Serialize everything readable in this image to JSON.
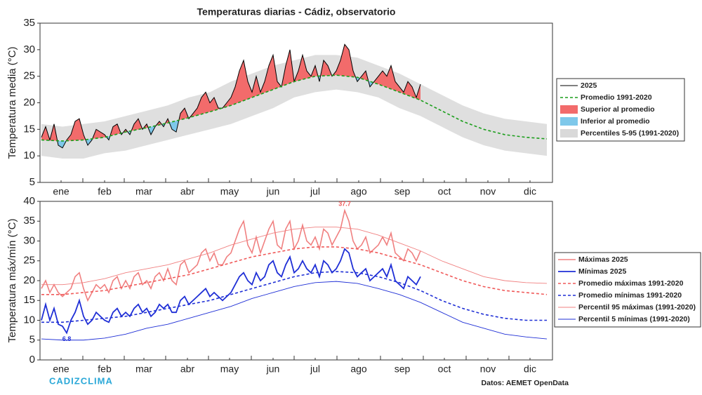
{
  "chart_data": [
    {
      "type": "line",
      "title": "Temperaturas diarias - Cádiz, observatorio",
      "ylabel": "Temperatura media (°C)",
      "xlim": [
        0,
        365
      ],
      "ylim": [
        5,
        35
      ],
      "yticks": [
        5,
        10,
        15,
        20,
        25,
        30,
        35
      ],
      "xticks": [
        {
          "value": 15,
          "label": "ene"
        },
        {
          "value": 46,
          "label": "feb"
        },
        {
          "value": 74,
          "label": "mar"
        },
        {
          "value": 105,
          "label": "abr"
        },
        {
          "value": 135,
          "label": "may"
        },
        {
          "value": 166,
          "label": "jun"
        },
        {
          "value": 196,
          "label": "jul"
        },
        {
          "value": 227,
          "label": "ago"
        },
        {
          "value": 258,
          "label": "sep"
        },
        {
          "value": 288,
          "label": "oct"
        },
        {
          "value": 319,
          "label": "nov"
        },
        {
          "value": 349,
          "label": "dic"
        }
      ],
      "band": {
        "name": "Percentiles 5-95 (1991-2020)",
        "color": "#d9d9d9",
        "x": [
          1,
          16,
          31,
          46,
          61,
          76,
          91,
          106,
          121,
          136,
          151,
          166,
          181,
          196,
          211,
          226,
          241,
          256,
          271,
          286,
          301,
          316,
          331,
          346,
          361
        ],
        "low": [
          10,
          9.5,
          9.5,
          10.5,
          11,
          12,
          13,
          14,
          15,
          16,
          17.5,
          19,
          21,
          22,
          22.5,
          22,
          21,
          19,
          17.5,
          15.5,
          13.5,
          12,
          11,
          10.5,
          10
        ],
        "high": [
          16,
          15.5,
          16,
          16.5,
          17.5,
          18.5,
          19.5,
          21,
          22,
          24,
          25.5,
          27,
          28,
          29,
          29,
          28.5,
          27,
          25.5,
          23.5,
          21.5,
          19.5,
          18,
          17,
          16.5,
          16
        ]
      },
      "fills": [
        {
          "name": "Superior al promedio",
          "color": "#f26b6b"
        },
        {
          "name": "Inferior al promedio",
          "color": "#7ec8ea"
        }
      ],
      "series": [
        {
          "name": "2025",
          "color": "#000000",
          "linewidth": 1,
          "x": [
            1,
            4,
            7,
            10,
            13,
            16,
            19,
            22,
            25,
            28,
            31,
            34,
            37,
            40,
            43,
            46,
            49,
            52,
            55,
            58,
            61,
            64,
            67,
            70,
            73,
            76,
            79,
            82,
            85,
            88,
            91,
            94,
            97,
            100,
            103,
            106,
            109,
            112,
            115,
            118,
            121,
            124,
            127,
            130,
            133,
            136,
            139,
            142,
            145,
            148,
            151,
            154,
            157,
            160,
            163,
            166,
            169,
            172,
            175,
            178,
            181,
            184,
            187,
            190,
            193,
            196,
            199,
            202,
            205,
            208,
            211,
            214,
            217,
            220,
            223,
            226,
            229,
            232,
            235,
            238,
            241,
            244,
            247,
            250,
            253,
            256,
            259,
            262,
            265,
            268,
            271
          ],
          "values": [
            13.5,
            15.5,
            13,
            16,
            12,
            11.5,
            13,
            14,
            16.5,
            17,
            14,
            12,
            13,
            15,
            14.5,
            14,
            13,
            15.5,
            16,
            14,
            15,
            14,
            16,
            17,
            15,
            16,
            14,
            15.5,
            16.5,
            15.5,
            17,
            15,
            14.5,
            18,
            19,
            17,
            18,
            19,
            21,
            22,
            20,
            21,
            19,
            19,
            20,
            21,
            23,
            26,
            28,
            24,
            22,
            25,
            22,
            24,
            27,
            29,
            24,
            23,
            27,
            30,
            24,
            26,
            29,
            26,
            25,
            27,
            24,
            28,
            27,
            25,
            26,
            28,
            31,
            30,
            26,
            24,
            25,
            26,
            23,
            24,
            25,
            26,
            25,
            27,
            24,
            23,
            22,
            24,
            23,
            21,
            23.5
          ]
        },
        {
          "name": "Promedio 1991-2020",
          "color": "#1a9e1a",
          "linewidth": 1.6,
          "style": "dashed",
          "x": [
            1,
            16,
            31,
            46,
            61,
            76,
            91,
            106,
            121,
            136,
            151,
            166,
            181,
            196,
            211,
            226,
            241,
            256,
            271,
            286,
            301,
            316,
            331,
            346,
            361
          ],
          "values": [
            13,
            12.8,
            13,
            13.5,
            14.5,
            15.3,
            16.2,
            17.2,
            18.3,
            19.5,
            21,
            22.5,
            24,
            25,
            25.2,
            24.8,
            23.5,
            22,
            20.5,
            18.5,
            16.5,
            15,
            14,
            13.5,
            13.2
          ]
        }
      ]
    },
    {
      "type": "line",
      "ylabel": "Temperatura máx/mín (°C)",
      "xlim": [
        0,
        365
      ],
      "ylim": [
        0,
        40
      ],
      "yticks": [
        0,
        5,
        10,
        15,
        20,
        25,
        30,
        35,
        40
      ],
      "xticks": [
        {
          "value": 15,
          "label": "ene"
        },
        {
          "value": 46,
          "label": "feb"
        },
        {
          "value": 74,
          "label": "mar"
        },
        {
          "value": 105,
          "label": "abr"
        },
        {
          "value": 135,
          "label": "may"
        },
        {
          "value": 166,
          "label": "jun"
        },
        {
          "value": 196,
          "label": "jul"
        },
        {
          "value": 227,
          "label": "ago"
        },
        {
          "value": 258,
          "label": "sep"
        },
        {
          "value": 288,
          "label": "oct"
        },
        {
          "value": 319,
          "label": "nov"
        },
        {
          "value": 349,
          "label": "dic"
        }
      ],
      "series": [
        {
          "name": "Máximas 2025",
          "color": "#f08080",
          "linewidth": 1.6,
          "x": [
            1,
            4,
            7,
            10,
            13,
            16,
            19,
            22,
            25,
            28,
            31,
            34,
            37,
            40,
            43,
            46,
            49,
            52,
            55,
            58,
            61,
            64,
            67,
            70,
            73,
            76,
            79,
            82,
            85,
            88,
            91,
            94,
            97,
            100,
            103,
            106,
            109,
            112,
            115,
            118,
            121,
            124,
            127,
            130,
            133,
            136,
            139,
            142,
            145,
            148,
            151,
            154,
            157,
            160,
            163,
            166,
            169,
            172,
            175,
            178,
            181,
            184,
            187,
            190,
            193,
            196,
            199,
            202,
            205,
            208,
            211,
            214,
            217,
            220,
            223,
            226,
            229,
            232,
            235,
            238,
            241,
            244,
            247,
            250,
            253,
            256,
            259,
            262,
            265,
            268,
            271
          ],
          "values": [
            18,
            20,
            17,
            19,
            17,
            16,
            17,
            18,
            21,
            22,
            18,
            15,
            17,
            19,
            18,
            19,
            17,
            20,
            21,
            18,
            20,
            18,
            21,
            22,
            19,
            20,
            18,
            21,
            22,
            20,
            23,
            20,
            19,
            24,
            25,
            22,
            23,
            24,
            27,
            28,
            25,
            27,
            24,
            24,
            26,
            27,
            30,
            33,
            35,
            29,
            27,
            31,
            27,
            30,
            33,
            35,
            29,
            28,
            33,
            35,
            28,
            30,
            34,
            30,
            29,
            31,
            28,
            33,
            32,
            29,
            31,
            33,
            37.7,
            35,
            30,
            28,
            29,
            31,
            27,
            28,
            29,
            31,
            29,
            32,
            27,
            26,
            25,
            28,
            27,
            25,
            27.5
          ]
        },
        {
          "name": "Mínimas 2025",
          "color": "#1f2fd6",
          "linewidth": 1.8,
          "x": [
            1,
            4,
            7,
            10,
            13,
            16,
            19,
            22,
            25,
            28,
            31,
            34,
            37,
            40,
            43,
            46,
            49,
            52,
            55,
            58,
            61,
            64,
            67,
            70,
            73,
            76,
            79,
            82,
            85,
            88,
            91,
            94,
            97,
            100,
            103,
            106,
            109,
            112,
            115,
            118,
            121,
            124,
            127,
            130,
            133,
            136,
            139,
            142,
            145,
            148,
            151,
            154,
            157,
            160,
            163,
            166,
            169,
            172,
            175,
            178,
            181,
            184,
            187,
            190,
            193,
            196,
            199,
            202,
            205,
            208,
            211,
            214,
            217,
            220,
            223,
            226,
            229,
            232,
            235,
            238,
            241,
            244,
            247,
            250,
            253,
            256,
            259,
            262,
            265,
            268,
            271
          ],
          "values": [
            10,
            14,
            10,
            13,
            9,
            8.5,
            6.8,
            10,
            12,
            15,
            11,
            9,
            10,
            12,
            11,
            10,
            9.5,
            12,
            13,
            11,
            12,
            11,
            13,
            14,
            12,
            13,
            11,
            12,
            14,
            13,
            14,
            12,
            12,
            15,
            16,
            14,
            15,
            16,
            17,
            18,
            16,
            17,
            16,
            15,
            16,
            17,
            19,
            21,
            22,
            20,
            19,
            22,
            20,
            21,
            24,
            25,
            22,
            21,
            24,
            26,
            22,
            23,
            25,
            23,
            22,
            24,
            21,
            25,
            24,
            22,
            23,
            25,
            28,
            27,
            23,
            21,
            22,
            23,
            20,
            21,
            22,
            23,
            21,
            24,
            20,
            19,
            18,
            21,
            20,
            19,
            21
          ]
        },
        {
          "name": "Promedio máximas 1991-2020",
          "color": "#f05a5a",
          "linewidth": 1.6,
          "style": "dashed",
          "x": [
            1,
            16,
            31,
            46,
            61,
            76,
            91,
            106,
            121,
            136,
            151,
            166,
            181,
            196,
            211,
            226,
            241,
            256,
            271,
            286,
            301,
            316,
            331,
            346,
            361
          ],
          "values": [
            16.5,
            16.5,
            17,
            17.5,
            18.5,
            19.5,
            20.5,
            21.5,
            23,
            24.5,
            26,
            27,
            28,
            28.5,
            28.5,
            28,
            27,
            25.5,
            24,
            22,
            20,
            18.5,
            17.5,
            17,
            16.5
          ]
        },
        {
          "name": "Promedio mínimas 1991-2020",
          "color": "#1f2fd6",
          "linewidth": 1.6,
          "style": "dashed",
          "x": [
            1,
            16,
            31,
            46,
            61,
            76,
            91,
            106,
            121,
            136,
            151,
            166,
            181,
            196,
            211,
            226,
            241,
            256,
            271,
            286,
            301,
            316,
            331,
            346,
            361
          ],
          "values": [
            9.5,
            9.5,
            10,
            10.5,
            11,
            12,
            13,
            14,
            15,
            16.5,
            18,
            19.5,
            21,
            22,
            22.3,
            22,
            21,
            19.5,
            17.5,
            15,
            13,
            11.5,
            10.5,
            10,
            10
          ]
        },
        {
          "name": "Percentil 95 máximas (1991-2020)",
          "color": "#f08080",
          "linewidth": 0.9,
          "x": [
            1,
            16,
            31,
            46,
            61,
            76,
            91,
            106,
            121,
            136,
            151,
            166,
            181,
            196,
            211,
            226,
            241,
            256,
            271,
            286,
            301,
            316,
            331,
            346,
            361
          ],
          "values": [
            19,
            19,
            19.5,
            20.5,
            22,
            23,
            24,
            25.5,
            27,
            29,
            30.5,
            32,
            33,
            33.5,
            33.5,
            33,
            31.5,
            29.5,
            27.5,
            25,
            23,
            21,
            20,
            19.5,
            19.3
          ]
        },
        {
          "name": "Percentil 5 mínimas (1991-2020)",
          "color": "#1f2fd6",
          "linewidth": 0.9,
          "x": [
            1,
            16,
            31,
            46,
            61,
            76,
            91,
            106,
            121,
            136,
            151,
            166,
            181,
            196,
            211,
            226,
            241,
            256,
            271,
            286,
            301,
            316,
            331,
            346,
            361
          ],
          "values": [
            5.3,
            5,
            5,
            5.5,
            6.5,
            8,
            9,
            10.5,
            12,
            13.5,
            15.5,
            17,
            18.5,
            19.5,
            19.8,
            19.3,
            18,
            16.5,
            14.5,
            12,
            9.5,
            8,
            6.5,
            5.8,
            5.3
          ]
        }
      ],
      "annotations": [
        {
          "text": "37.7",
          "x": 217,
          "y": 37.7,
          "color": "#f05a5a",
          "position": "above"
        },
        {
          "text": "6.8",
          "x": 19,
          "y": 6.8,
          "color": "#1f2fd6",
          "position": "below"
        }
      ]
    }
  ],
  "footer": {
    "left": "CADIZCLIMA",
    "right": "Datos: AEMET OpenData"
  }
}
